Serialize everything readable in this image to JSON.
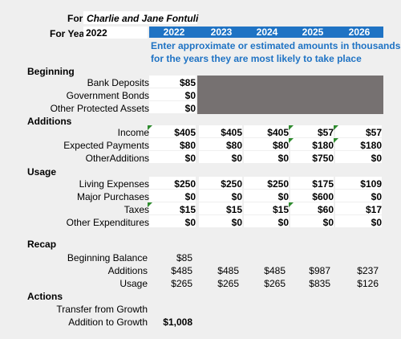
{
  "header": {
    "for_label": "For:",
    "for_value": "Charlie and Jane Fontuli",
    "year_label": "For Year:",
    "year_value": "2022",
    "years": [
      "2022",
      "2023",
      "2024",
      "2025",
      "2026"
    ],
    "note_line1": "Enter approximate or estimated amounts in thousands",
    "note_line2": "for the years they are most likely to take place"
  },
  "beginning": {
    "title": "Beginning",
    "rows": [
      {
        "label": "Bank Deposits",
        "value": "$85"
      },
      {
        "label": "Government Bonds",
        "value": "$0"
      },
      {
        "label": "Other Protected Assets",
        "value": "$0"
      }
    ]
  },
  "additions": {
    "title": "Additions",
    "rows": [
      {
        "label": "Income",
        "values": [
          "$405",
          "$405",
          "$405",
          "$57",
          "$57"
        ]
      },
      {
        "label": "Expected Payments",
        "values": [
          "$80",
          "$80",
          "$80",
          "$180",
          "$180"
        ]
      },
      {
        "label": "OtherAdditions",
        "values": [
          "$0",
          "$0",
          "$0",
          "$750",
          "$0"
        ]
      }
    ]
  },
  "usage": {
    "title": "Usage",
    "rows": [
      {
        "label": "Living Expenses",
        "values": [
          "$250",
          "$250",
          "$250",
          "$175",
          "$109"
        ]
      },
      {
        "label": "Major Purchases",
        "values": [
          "$0",
          "$0",
          "$0",
          "$600",
          "$0"
        ]
      },
      {
        "label": "Taxes",
        "values": [
          "$15",
          "$15",
          "$15",
          "$60",
          "$17"
        ]
      },
      {
        "label": "Other Expenditures",
        "values": [
          "$0",
          "$0",
          "$0",
          "$0",
          "$0"
        ]
      }
    ]
  },
  "recap": {
    "title": "Recap",
    "beginning_label": "Beginning Balance",
    "beginning_value": "$85",
    "additions_label": "Additions",
    "additions_values": [
      "$485",
      "$485",
      "$485",
      "$987",
      "$237"
    ],
    "usage_label": "Usage",
    "usage_values": [
      "$265",
      "$265",
      "$265",
      "$835",
      "$126"
    ]
  },
  "actions": {
    "title": "Actions",
    "transfer_label": "Transfer from Growth",
    "transfer_value": "",
    "addition_label": "Addition to Growth",
    "addition_value": "$1,008"
  },
  "colors": {
    "accent_blue": "#1f73c4",
    "gray_block": "#767171",
    "comment_flag": "#2e8b2e"
  }
}
